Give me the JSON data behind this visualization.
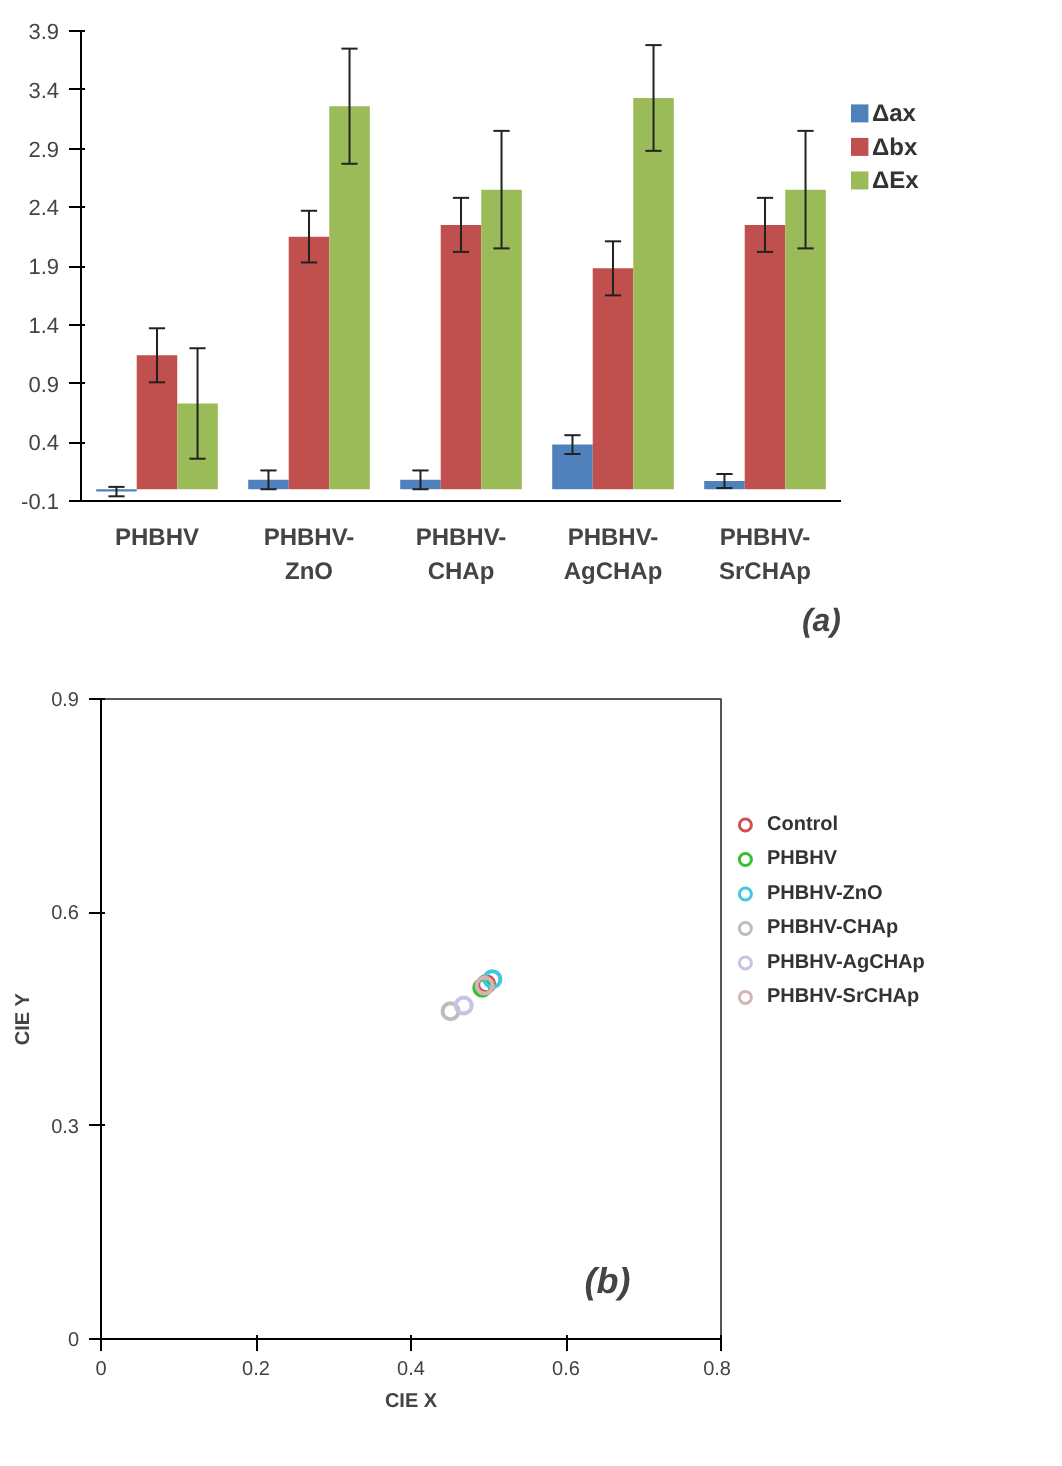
{
  "chart_data": [
    {
      "type": "bar",
      "categories": [
        "PHBHV",
        "PHBHV-\nZnO",
        "PHBHV-\nCHAp",
        "PHBHV-\nAgCHAp",
        "PHBHV-\nSrCHAp"
      ],
      "series": [
        {
          "name": "Δax",
          "color": "#4f81bd",
          "values": [
            -0.02,
            0.08,
            0.08,
            0.38,
            0.07
          ],
          "errors": [
            0.04,
            0.08,
            0.08,
            0.08,
            0.06
          ]
        },
        {
          "name": "Δbx",
          "color": "#c0504d",
          "values": [
            1.14,
            2.15,
            2.25,
            1.88,
            2.25
          ],
          "errors": [
            0.23,
            0.22,
            0.23,
            0.23,
            0.23
          ]
        },
        {
          "name": "ΔEx",
          "color": "#9bbb59",
          "values": [
            0.73,
            3.26,
            2.55,
            3.33,
            2.55
          ],
          "errors": [
            0.47,
            0.49,
            0.5,
            0.45,
            0.5
          ]
        }
      ],
      "ylim": [
        -0.1,
        3.9
      ],
      "yticks": [
        -0.1,
        0.4,
        0.9,
        1.4,
        1.9,
        2.4,
        2.9,
        3.4,
        3.9
      ],
      "grid": false,
      "legend": "right",
      "annotations": [
        "(a)"
      ]
    },
    {
      "type": "scatter",
      "xlabel": "CIE X",
      "ylabel": "CIE Y",
      "marker": "circle",
      "series": [
        {
          "name": "Control",
          "color": "#d05050",
          "x": [
            0.497
          ],
          "values": [
            0.499
          ]
        },
        {
          "name": "PHBHV",
          "color": "#33c033",
          "x": [
            0.492
          ],
          "values": [
            0.494
          ]
        },
        {
          "name": "PHBHV-ZnO",
          "color": "#40c8e0",
          "x": [
            0.505
          ],
          "values": [
            0.506
          ]
        },
        {
          "name": "PHBHV-CHAp",
          "color": "#bdbdbd",
          "x": [
            0.451
          ],
          "values": [
            0.461
          ]
        },
        {
          "name": "PHBHV-AgCHAp",
          "color": "#c4c4e4",
          "x": [
            0.468
          ],
          "values": [
            0.469
          ]
        },
        {
          "name": "PHBHV-SrCHAp",
          "color": "#d4b4b4",
          "x": [
            0.495
          ],
          "values": [
            0.497
          ]
        }
      ],
      "xlim": [
        0,
        0.8
      ],
      "ylim": [
        0,
        0.9
      ],
      "xticks": [
        0,
        0.2,
        0.4,
        0.6,
        0.8
      ],
      "yticks": [
        0,
        0.3,
        0.6,
        0.9
      ],
      "grid": false,
      "legend": "right",
      "annotations": [
        "(b)"
      ]
    }
  ]
}
